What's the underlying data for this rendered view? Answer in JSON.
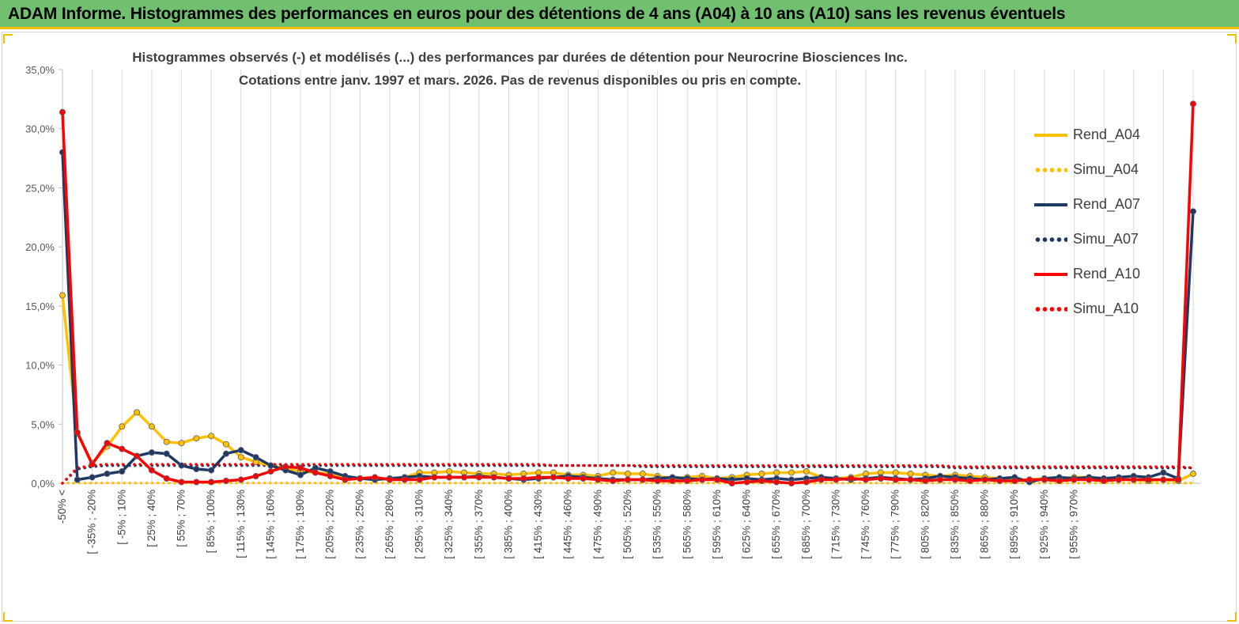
{
  "header": {
    "title": "ADAM Informe. Histogrammes des performances en euros pour des détentions de 4 ans (A04) à 10 ans (A10) sans les revenus éventuels"
  },
  "chart_data": {
    "type": "line",
    "title": "Histogrammes observés (-) et modélisés (...) des performances par durées de détention pour Neurocrine Biosciences Inc.",
    "subtitle": "Cotations entre janv. 1997 et mars. 2026.  Pas de revenus disponibles ou pris en compte.",
    "xlabel": "",
    "ylabel": "",
    "ylim": [
      0,
      35
    ],
    "yticks": [
      "0,0%",
      "5,0%",
      "10,0%",
      "15,0%",
      "20,0%",
      "25,0%",
      "30,0%",
      "35,0%"
    ],
    "grid": "vertical",
    "legend_position": "right",
    "x_labels": [
      "-50% <",
      "[ -35% ; -20%",
      "[ -5% ; 10%",
      "[ 25% ; 40%",
      "[ 55% ; 70%",
      "[ 85% ; 100%",
      "[ 115% ; 130%",
      "[ 145% ; 160%",
      "[ 175% ; 190%",
      "[ 205% ; 220%",
      "[ 235% ; 250%",
      "[ 265% ; 280%",
      "[ 295% ; 310%",
      "[ 325% ; 340%",
      "[ 355% ; 370%",
      "[ 385% ; 400%",
      "[ 415% ; 430%",
      "[ 445% ; 460%",
      "[ 475% ; 490%",
      "[ 505% ; 520%",
      "[ 535% ; 550%",
      "[ 565% ; 580%",
      "[ 595% ; 610%",
      "[ 625% ; 640%",
      "[ 655% ; 670%",
      "[ 685% ; 700%",
      "[ 715% ; 730%",
      "[ 745% ; 760%",
      "[ 775% ; 790%",
      "[ 805% ; 820%",
      "[ 835% ; 850%",
      "[ 865% ; 880%",
      "[ 895% ; 910%",
      "[ 925% ; 940%",
      "[ 955% ; 970%"
    ],
    "series": [
      {
        "name": "Rend_A04",
        "color": "#ffc000",
        "style": "solid",
        "markers": true,
        "values": [
          15.9,
          4.2,
          1.7,
          3.1,
          4.8,
          6.0,
          4.8,
          3.5,
          3.4,
          3.8,
          4.0,
          3.3,
          2.2,
          1.8,
          1.5,
          1.2,
          1.0,
          0.9,
          0.8,
          0.5,
          0.4,
          0.4,
          0.4,
          0.5,
          0.9,
          0.9,
          1.0,
          0.9,
          0.8,
          0.8,
          0.7,
          0.8,
          0.9,
          0.9,
          0.7,
          0.7,
          0.6,
          0.9,
          0.8,
          0.8,
          0.6,
          0.4,
          0.5,
          0.6,
          0.4,
          0.5,
          0.7,
          0.8,
          0.9,
          0.9,
          1.0,
          0.5,
          0.4,
          0.5,
          0.8,
          0.9,
          0.9,
          0.8,
          0.7,
          0.6,
          0.7,
          0.6,
          0.5,
          0.4,
          0.3,
          0.3,
          0.4,
          0.4,
          0.5,
          0.5,
          0.4,
          0.3,
          0.3,
          0.2,
          0.3,
          0.2,
          0.8
        ]
      },
      {
        "name": "Simu_A04",
        "color": "#ffc000",
        "style": "dotted",
        "markers": false,
        "values": [
          0.02,
          0.02,
          0.02,
          0.02,
          0.02,
          0.02,
          0.02,
          0.02,
          0.02,
          0.02,
          0.02,
          0.02,
          0.02,
          0.02,
          0.02,
          0.02,
          0.02,
          0.02,
          0.02,
          0.02,
          0.02,
          0.02,
          0.02,
          0.02,
          0.02,
          0.02,
          0.02,
          0.02,
          0.02,
          0.02,
          0.02,
          0.02,
          0.02,
          0.02,
          0.02,
          0.02,
          0.02,
          0.02,
          0.02,
          0.02,
          0.02,
          0.02,
          0.02,
          0.02,
          0.02,
          0.02,
          0.02,
          0.02,
          0.02,
          0.02,
          0.02,
          0.02,
          0.02,
          0.02,
          0.02,
          0.02,
          0.02,
          0.02,
          0.02,
          0.02,
          0.02,
          0.02,
          0.02,
          0.02,
          0.02,
          0.02,
          0.02,
          0.02,
          0.02,
          0.02,
          0.02,
          0.02,
          0.02,
          0.02,
          0.02,
          0.02,
          0.02
        ]
      },
      {
        "name": "Rend_A07",
        "color": "#1f3864",
        "style": "solid",
        "markers": true,
        "values": [
          28.0,
          0.3,
          0.5,
          0.8,
          1.0,
          2.3,
          2.6,
          2.5,
          1.5,
          1.2,
          1.1,
          2.5,
          2.8,
          2.2,
          1.5,
          1.1,
          0.7,
          1.3,
          1.0,
          0.6,
          0.4,
          0.3,
          0.4,
          0.5,
          0.6,
          0.5,
          0.5,
          0.5,
          0.6,
          0.5,
          0.4,
          0.3,
          0.4,
          0.5,
          0.6,
          0.5,
          0.4,
          0.3,
          0.3,
          0.3,
          0.4,
          0.5,
          0.4,
          0.3,
          0.4,
          0.3,
          0.4,
          0.3,
          0.4,
          0.3,
          0.4,
          0.5,
          0.4,
          0.3,
          0.4,
          0.5,
          0.4,
          0.3,
          0.4,
          0.6,
          0.5,
          0.4,
          0.3,
          0.4,
          0.5,
          0.1,
          0.4,
          0.5,
          0.4,
          0.5,
          0.4,
          0.5,
          0.6,
          0.5,
          0.9,
          0.4,
          23.0
        ]
      },
      {
        "name": "Simu_A07",
        "color": "#1f3864",
        "style": "dotted",
        "markers": false,
        "values": [
          0.0,
          1.2,
          1.4,
          1.5,
          1.5,
          1.5,
          1.5,
          1.5,
          1.5,
          1.5,
          1.5,
          1.5,
          1.5,
          1.5,
          1.5,
          1.5,
          1.5,
          1.5,
          1.5,
          1.5,
          1.5,
          1.5,
          1.5,
          1.5,
          1.5,
          1.5,
          1.5,
          1.5,
          1.5,
          1.5,
          1.5,
          1.5,
          1.5,
          1.5,
          1.5,
          1.5,
          1.5,
          1.5,
          1.5,
          1.4,
          1.4,
          1.4,
          1.4,
          1.4,
          1.4,
          1.4,
          1.4,
          1.4,
          1.4,
          1.4,
          1.4,
          1.4,
          1.4,
          1.4,
          1.4,
          1.4,
          1.4,
          1.4,
          1.4,
          1.4,
          1.3,
          1.3,
          1.3,
          1.3,
          1.3,
          1.3,
          1.3,
          1.3,
          1.3,
          1.3,
          1.3,
          1.3,
          1.3,
          1.3,
          1.3,
          1.3,
          1.3
        ]
      },
      {
        "name": "Rend_A10",
        "color": "#ff0000",
        "style": "solid",
        "markers": true,
        "values": [
          31.4,
          4.3,
          1.6,
          3.4,
          2.9,
          2.3,
          1.1,
          0.4,
          0.1,
          0.1,
          0.1,
          0.2,
          0.3,
          0.6,
          1.0,
          1.4,
          1.3,
          0.9,
          0.6,
          0.3,
          0.4,
          0.5,
          0.3,
          0.3,
          0.3,
          0.5,
          0.5,
          0.5,
          0.5,
          0.5,
          0.4,
          0.4,
          0.5,
          0.5,
          0.4,
          0.4,
          0.3,
          0.2,
          0.3,
          0.3,
          0.2,
          0.2,
          0.2,
          0.3,
          0.3,
          0.0,
          0.1,
          0.2,
          0.1,
          0.0,
          0.1,
          0.3,
          0.3,
          0.4,
          0.3,
          0.4,
          0.3,
          0.3,
          0.2,
          0.3,
          0.3,
          0.2,
          0.3,
          0.2,
          0.2,
          0.3,
          0.3,
          0.2,
          0.3,
          0.3,
          0.2,
          0.3,
          0.3,
          0.3,
          0.3,
          0.3,
          32.1
        ]
      },
      {
        "name": "Simu_A10",
        "color": "#ff0000",
        "style": "dotted",
        "markers": false,
        "values": [
          0.0,
          1.3,
          1.5,
          1.6,
          1.6,
          1.6,
          1.6,
          1.6,
          1.6,
          1.6,
          1.6,
          1.6,
          1.6,
          1.6,
          1.6,
          1.6,
          1.6,
          1.6,
          1.6,
          1.6,
          1.6,
          1.6,
          1.6,
          1.6,
          1.6,
          1.6,
          1.6,
          1.6,
          1.6,
          1.6,
          1.6,
          1.6,
          1.6,
          1.5,
          1.5,
          1.5,
          1.5,
          1.5,
          1.5,
          1.5,
          1.5,
          1.5,
          1.5,
          1.5,
          1.5,
          1.5,
          1.5,
          1.5,
          1.5,
          1.5,
          1.5,
          1.5,
          1.5,
          1.5,
          1.5,
          1.5,
          1.5,
          1.5,
          1.5,
          1.5,
          1.4,
          1.4,
          1.4,
          1.4,
          1.4,
          1.4,
          1.4,
          1.4,
          1.4,
          1.4,
          1.4,
          1.4,
          1.4,
          1.4,
          1.4,
          1.4,
          1.3
        ]
      }
    ]
  }
}
